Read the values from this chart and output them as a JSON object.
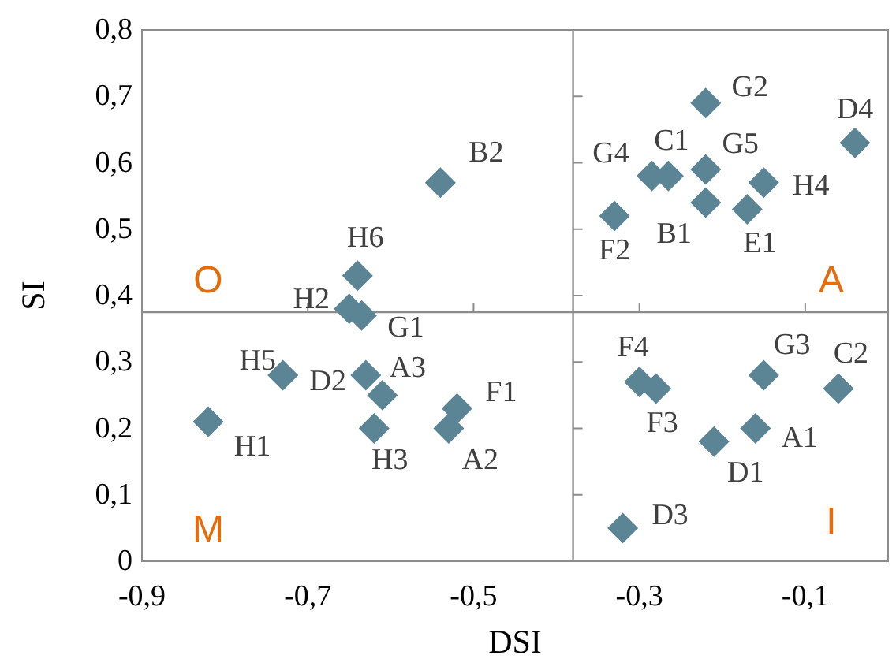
{
  "chart_data": {
    "type": "scatter",
    "xlabel": "DSI",
    "ylabel": "SI",
    "marker": "diamond",
    "grid": false,
    "xlim": [
      -0.9,
      0
    ],
    "xticks": [
      {
        "value": -0.9,
        "label": "-0,9"
      },
      {
        "value": -0.7,
        "label": "-0,7"
      },
      {
        "value": -0.5,
        "label": "-0,5"
      },
      {
        "value": -0.3,
        "label": "-0,3"
      },
      {
        "value": -0.1,
        "label": "-0,1"
      }
    ],
    "ylim": [
      0,
      0.8
    ],
    "yticks": [
      0,
      {
        "value": 0.1,
        "label": "0,1"
      },
      {
        "value": 0.2,
        "label": "0,2"
      },
      {
        "value": 0.3,
        "label": "0,3"
      },
      {
        "value": 0.4,
        "label": "0,4"
      },
      {
        "value": 0.5,
        "label": "0,5"
      },
      {
        "value": 0.6,
        "label": "0,6"
      },
      {
        "value": 0.7,
        "label": "0,7"
      },
      {
        "value": 0.8,
        "label": "0,8"
      }
    ],
    "ref_lines": [
      {
        "axis": "x",
        "value": -0.38,
        "color": "#8c8c8c"
      },
      {
        "axis": "y",
        "value": 0.375,
        "color": "#8c8c8c"
      }
    ],
    "annotations": [
      "O",
      "A",
      "M",
      "I"
    ],
    "series": [
      {
        "name": "B2",
        "color": "#5b8495",
        "x": [
          -0.54
        ],
        "values": [
          0.57
        ]
      },
      {
        "name": "H6",
        "color": "#5b8495",
        "x": [
          -0.64
        ],
        "values": [
          0.43
        ]
      },
      {
        "name": "H2",
        "color": "#5b8495",
        "x": [
          -0.65
        ],
        "values": [
          0.38
        ]
      },
      {
        "name": "G1",
        "color": "#5b8495",
        "x": [
          -0.635
        ],
        "values": [
          0.37
        ]
      },
      {
        "name": "H5",
        "color": "#5b8495",
        "x": [
          -0.73
        ],
        "values": [
          0.28
        ]
      },
      {
        "name": "H1",
        "color": "#5b8495",
        "x": [
          -0.82
        ],
        "values": [
          0.21
        ]
      },
      {
        "name": "D2",
        "color": "#5b8495",
        "x": [
          -0.63
        ],
        "values": [
          0.28
        ]
      },
      {
        "name": "A3",
        "color": "#5b8495",
        "x": [
          -0.61
        ],
        "values": [
          0.25
        ]
      },
      {
        "name": "H3",
        "color": "#5b8495",
        "x": [
          -0.62
        ],
        "values": [
          0.2
        ]
      },
      {
        "name": "F1",
        "color": "#5b8495",
        "x": [
          -0.52
        ],
        "values": [
          0.23
        ]
      },
      {
        "name": "A2",
        "color": "#5b8495",
        "x": [
          -0.53
        ],
        "values": [
          0.2
        ]
      },
      {
        "name": "G2",
        "color": "#5b8495",
        "x": [
          -0.22
        ],
        "values": [
          0.69
        ]
      },
      {
        "name": "D4",
        "color": "#5b8495",
        "x": [
          -0.04
        ],
        "values": [
          0.63
        ]
      },
      {
        "name": "G5",
        "color": "#5b8495",
        "x": [
          -0.22
        ],
        "values": [
          0.59
        ]
      },
      {
        "name": "H4",
        "color": "#5b8495",
        "x": [
          -0.15
        ],
        "values": [
          0.57
        ]
      },
      {
        "name": "C1",
        "color": "#5b8495",
        "x": [
          -0.265
        ],
        "values": [
          0.58
        ]
      },
      {
        "name": "G4",
        "color": "#5b8495",
        "x": [
          -0.285
        ],
        "values": [
          0.58
        ]
      },
      {
        "name": "B1",
        "color": "#5b8495",
        "x": [
          -0.22
        ],
        "values": [
          0.54
        ]
      },
      {
        "name": "F2",
        "color": "#5b8495",
        "x": [
          -0.33
        ],
        "values": [
          0.52
        ]
      },
      {
        "name": "E1",
        "color": "#5b8495",
        "x": [
          -0.17
        ],
        "values": [
          0.53
        ]
      },
      {
        "name": "F4",
        "color": "#5b8495",
        "x": [
          -0.3
        ],
        "values": [
          0.27
        ]
      },
      {
        "name": "F3",
        "color": "#5b8495",
        "x": [
          -0.28
        ],
        "values": [
          0.26
        ]
      },
      {
        "name": "G3",
        "color": "#5b8495",
        "x": [
          -0.15
        ],
        "values": [
          0.28
        ]
      },
      {
        "name": "C2",
        "color": "#5b8495",
        "x": [
          -0.06
        ],
        "values": [
          0.26
        ]
      },
      {
        "name": "A1",
        "color": "#5b8495",
        "x": [
          -0.16
        ],
        "values": [
          0.2
        ]
      },
      {
        "name": "D1",
        "color": "#5b8495",
        "x": [
          -0.21
        ],
        "values": [
          0.18
        ]
      },
      {
        "name": "D3",
        "color": "#5b8495",
        "x": [
          -0.32
        ],
        "values": [
          0.05
        ]
      }
    ]
  }
}
